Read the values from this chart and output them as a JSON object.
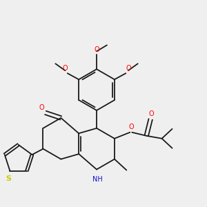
{
  "background_color": "#efefef",
  "bond_color": "#1a1a1a",
  "atom_colors": {
    "O": "#ff0000",
    "N": "#1010cc",
    "S": "#cccc00",
    "C": "#1a1a1a"
  },
  "figsize": [
    3.0,
    3.0
  ],
  "dpi": 100
}
